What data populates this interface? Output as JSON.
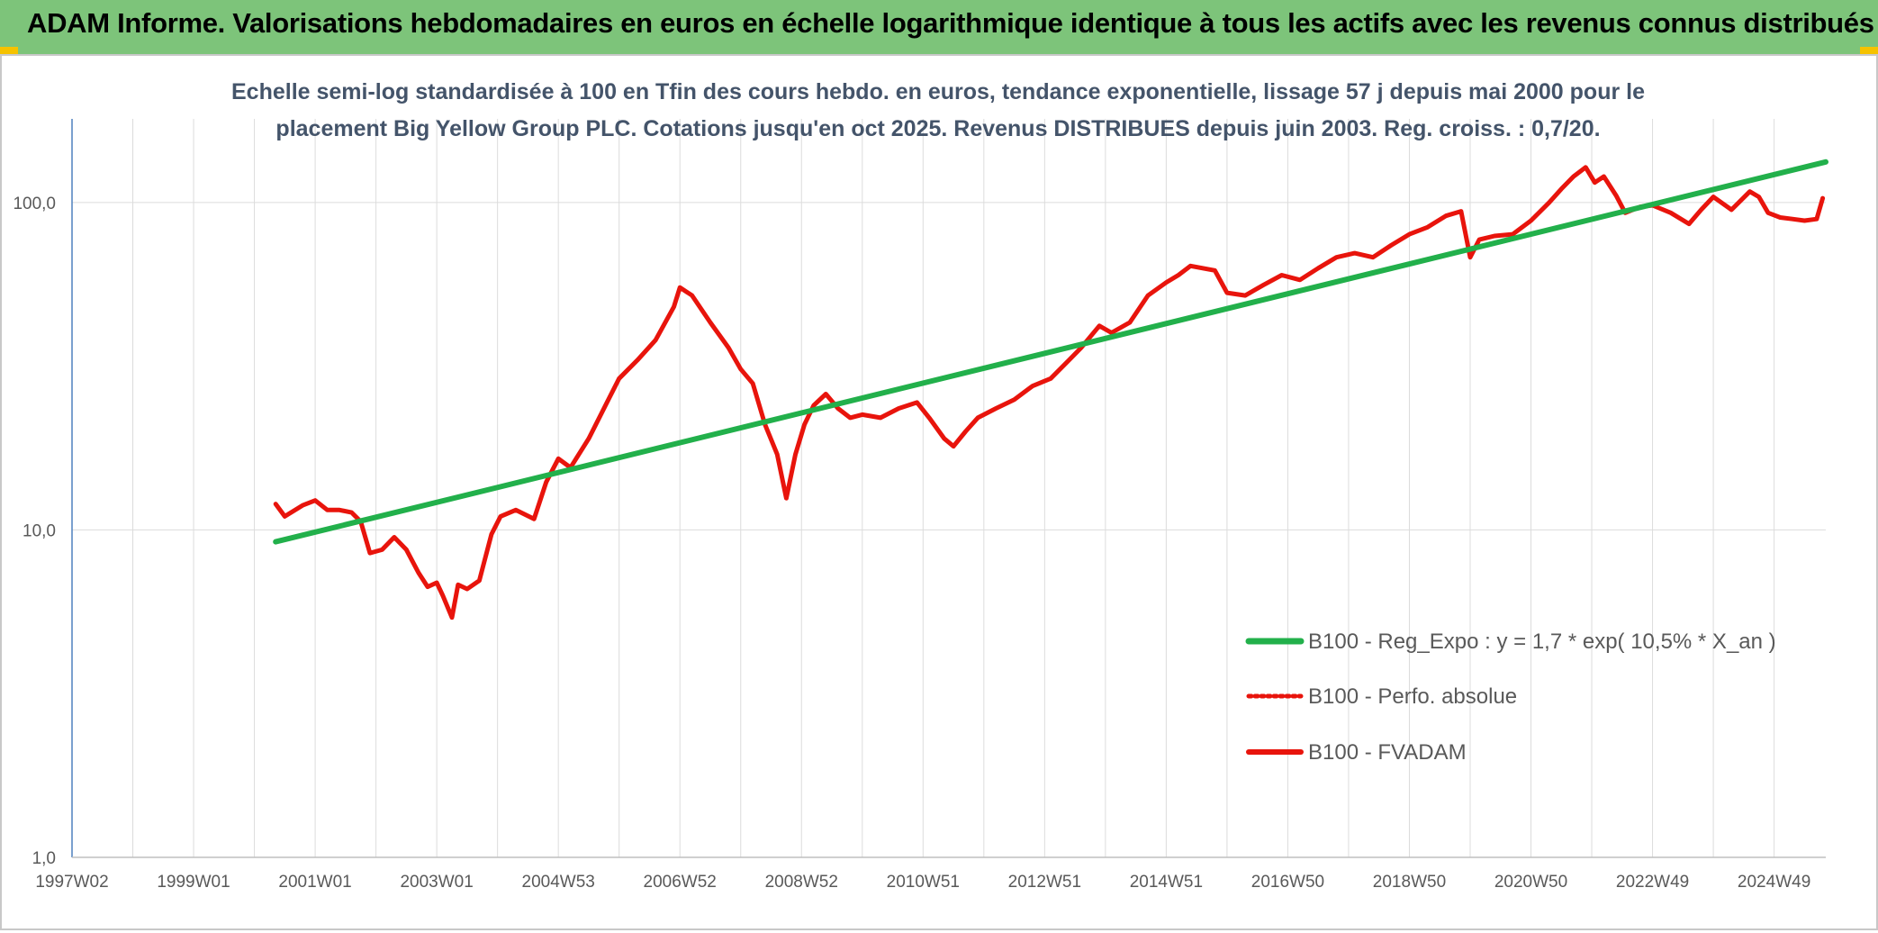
{
  "header": {
    "title": "ADAM Informe. Valorisations hebdomadaires en euros en échelle logarithmique identique à tous les actifs avec les revenus connus distribués"
  },
  "chart_data": {
    "type": "line",
    "title_lines": [
      "Echelle semi-log standardisée à 100 en Tfin des cours hebdo. en euros, tendance exponentielle, lissage 57 j depuis mai 2000 pour le",
      "placement Big Yellow Group PLC. Cotations jusqu'en oct 2025. Revenus DISTRIBUES depuis juin 2003. Reg. croiss. : 0,7/20."
    ],
    "y_scale": "log",
    "ylim": [
      1,
      180
    ],
    "xlim": [
      1997.0,
      2025.85
    ],
    "y_ticks": [
      {
        "value": 1,
        "label": "1,0"
      },
      {
        "value": 10,
        "label": "10,0"
      },
      {
        "value": 100,
        "label": "100,0"
      }
    ],
    "x_ticks": [
      {
        "value": 1997.0,
        "label": "1997W02"
      },
      {
        "value": 1999.0,
        "label": "1999W01"
      },
      {
        "value": 2001.0,
        "label": "2001W01"
      },
      {
        "value": 2003.0,
        "label": "2003W01"
      },
      {
        "value": 2005.0,
        "label": "2004W53"
      },
      {
        "value": 2007.0,
        "label": "2006W52"
      },
      {
        "value": 2009.0,
        "label": "2008W52"
      },
      {
        "value": 2011.0,
        "label": "2010W51"
      },
      {
        "value": 2013.0,
        "label": "2012W51"
      },
      {
        "value": 2015.0,
        "label": "2014W51"
      },
      {
        "value": 2017.0,
        "label": "2016W50"
      },
      {
        "value": 2019.0,
        "label": "2018W50"
      },
      {
        "value": 2021.0,
        "label": "2020W50"
      },
      {
        "value": 2023.0,
        "label": "2022W49"
      },
      {
        "value": 2025.0,
        "label": "2024W49"
      }
    ],
    "grid": "vertical and horizontal",
    "legend_position": "bottom-right",
    "colors": {
      "regression": "#22b04b",
      "fvadam": "#e8140c",
      "perfo": "#e8140c"
    },
    "series": [
      {
        "name": "B100 - Reg_Expo : y = 1,7 * exp( 10,5% *  X_an )",
        "style": "solid",
        "x": [
          2000.35,
          2025.85
        ],
        "y": [
          9.2,
          133
        ]
      },
      {
        "name": "B100 - Perfo. absolue",
        "style": "dotted",
        "x": [],
        "y": []
      },
      {
        "name": "B100 - FVADAM",
        "style": "solid",
        "x": [
          2000.35,
          2000.5,
          2000.8,
          2001.0,
          2001.2,
          2001.4,
          2001.6,
          2001.75,
          2001.9,
          2002.1,
          2002.3,
          2002.5,
          2002.7,
          2002.85,
          2003.0,
          2003.1,
          2003.25,
          2003.35,
          2003.5,
          2003.7,
          2003.9,
          2004.05,
          2004.3,
          2004.6,
          2004.8,
          2005.0,
          2005.2,
          2005.5,
          2005.8,
          2006.0,
          2006.3,
          2006.6,
          2006.9,
          2007.0,
          2007.2,
          2007.5,
          2007.8,
          2008.0,
          2008.2,
          2008.4,
          2008.6,
          2008.75,
          2008.9,
          2009.05,
          2009.2,
          2009.4,
          2009.6,
          2009.8,
          2010.0,
          2010.3,
          2010.6,
          2010.9,
          2011.1,
          2011.35,
          2011.5,
          2011.7,
          2011.9,
          2012.2,
          2012.5,
          2012.8,
          2013.1,
          2013.4,
          2013.6,
          2013.9,
          2014.1,
          2014.4,
          2014.7,
          2015.0,
          2015.2,
          2015.4,
          2015.6,
          2015.8,
          2016.0,
          2016.3,
          2016.6,
          2016.9,
          2017.2,
          2017.5,
          2017.8,
          2018.1,
          2018.4,
          2018.7,
          2019.0,
          2019.3,
          2019.6,
          2019.85,
          2020.0,
          2020.15,
          2020.4,
          2020.7,
          2021.0,
          2021.3,
          2021.5,
          2021.7,
          2021.9,
          2022.05,
          2022.2,
          2022.4,
          2022.55,
          2022.8,
          2023.0,
          2023.3,
          2023.6,
          2023.8,
          2024.0,
          2024.3,
          2024.6,
          2024.75,
          2024.9,
          2025.1,
          2025.3,
          2025.5,
          2025.7,
          2025.8
        ],
        "y": [
          12.0,
          11.0,
          11.9,
          12.3,
          11.5,
          11.5,
          11.3,
          10.6,
          8.5,
          8.7,
          9.5,
          8.7,
          7.4,
          6.7,
          6.9,
          6.3,
          5.4,
          6.8,
          6.6,
          7.0,
          9.7,
          11.0,
          11.5,
          10.8,
          14.0,
          16.5,
          15.5,
          19.0,
          24.5,
          29.0,
          33.0,
          38.0,
          48.0,
          55.0,
          52.0,
          43.0,
          36.0,
          31.0,
          28.0,
          21.0,
          17.0,
          12.5,
          17.0,
          21.0,
          24.0,
          26.0,
          23.5,
          22.0,
          22.5,
          22.0,
          23.5,
          24.5,
          22.0,
          19.0,
          18.0,
          20.0,
          22.0,
          23.5,
          25.0,
          27.5,
          29.0,
          33.0,
          36.0,
          42.0,
          40.0,
          43.0,
          52.0,
          57.0,
          60.0,
          64.0,
          63.0,
          62.0,
          53.0,
          52.0,
          56.0,
          60.0,
          58.0,
          63.0,
          68.0,
          70.0,
          68.0,
          74.0,
          80.0,
          84.0,
          91.0,
          94.0,
          68.0,
          77.0,
          79.0,
          80.0,
          88.0,
          100.0,
          110.0,
          120.0,
          128.0,
          115.0,
          120.0,
          105.0,
          93.0,
          97.0,
          98.0,
          93.0,
          86.0,
          95.0,
          104.0,
          95.0,
          108.0,
          104.0,
          93.0,
          90.0,
          89.0,
          88.0,
          89.0,
          103.0
        ]
      }
    ]
  }
}
